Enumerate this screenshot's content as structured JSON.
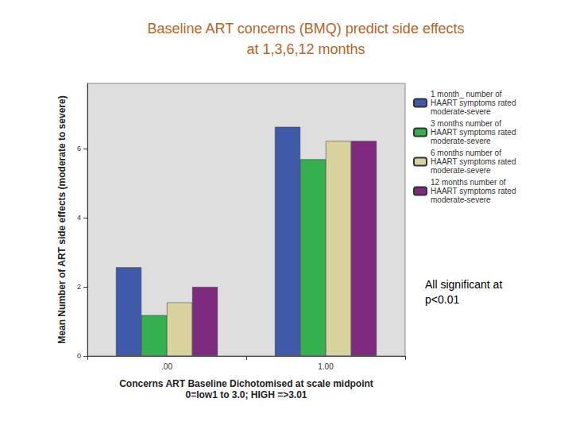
{
  "chart_data": {
    "type": "bar",
    "title": "Baseline ART concerns (BMQ) predict side effects\nat 1,3,6,12 months",
    "x_label": "Concerns ART Baseline Dichotomised at scale midpoint\n0=low1 to 3.0; HIGH =>3.01",
    "y_label": "Mean Number of ART side effects (moderate to severe)",
    "categories": [
      ".00",
      "1.00"
    ],
    "series": [
      {
        "name": "1 month_ number of HAART symptoms rated moderate-severe",
        "color": "#3f5aa8",
        "values": [
          2.57,
          6.64
        ]
      },
      {
        "name": "3 months number of HAART symptoms rated moderate-severe",
        "color": "#35b04f",
        "values": [
          1.18,
          5.7
        ]
      },
      {
        "name": "6 months number of HAART symptoms rated moderate-severe",
        "color": "#d8d39c",
        "values": [
          1.55,
          6.23
        ]
      },
      {
        "name": "12 months number of HAART symptoms rated moderate-severe",
        "color": "#7d2a7f",
        "values": [
          2.0,
          6.23
        ]
      }
    ],
    "ylim": [
      0,
      7.9
    ],
    "yticks": [
      0,
      2,
      4,
      6
    ],
    "grid": false,
    "legend": "upper right",
    "annotation": "All significant at p<0.01"
  }
}
